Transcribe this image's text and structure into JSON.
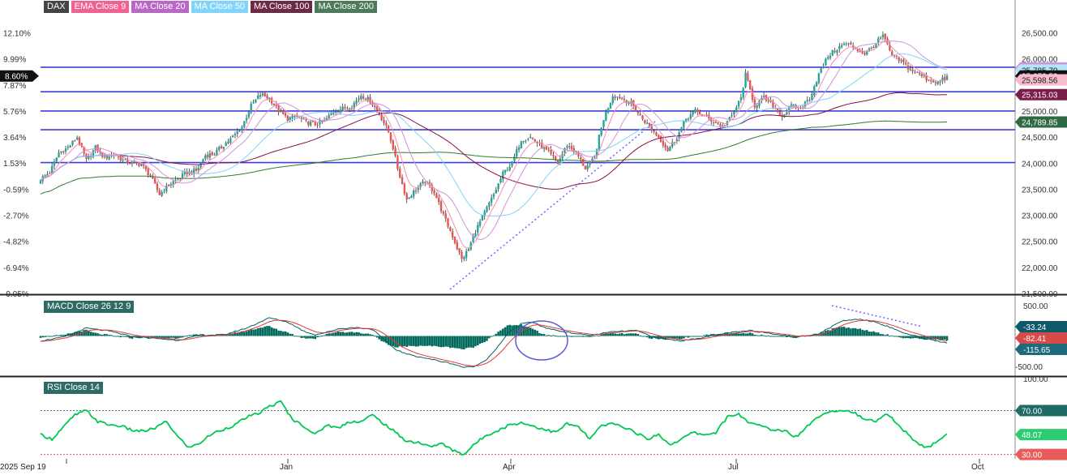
{
  "colors": {
    "up": "#26a69a",
    "down": "#ef5350",
    "ema9": "#f48fb1",
    "ma20": "#ce93d8",
    "ma50": "#81d4fa",
    "ma100": "#880e4f",
    "ma200": "#2e7d32",
    "hline": "#3f3fd8",
    "macd_line": "#006064",
    "macd_signal": "#e53935",
    "macd_hist": "#00695c",
    "rsi": "#00c853",
    "trend": "#7b5cff"
  },
  "legend": [
    {
      "label": "DAX",
      "color": "#444444"
    },
    {
      "label": "EMA Close 9",
      "color": "#f06292"
    },
    {
      "label": "MA Close 20",
      "color": "#ba68c8"
    },
    {
      "label": "MA Close 50",
      "color": "#81d4fa"
    },
    {
      "label": "MA Close 100",
      "color": "#6d2a45"
    },
    {
      "label": "MA Close 200",
      "color": "#4e7a5c"
    }
  ],
  "macd_legend": "MACD Close 26 12 9",
  "rsi_legend": "RSI Close 14",
  "chart_data": [
    {
      "type": "candlestick",
      "pane": "price",
      "x_ticks": [
        "2025 Sep 19",
        "Jan",
        "Apr",
        "Jul",
        "Oct"
      ],
      "y_ticks_right": [
        "26,500.00",
        "26,000.00",
        "25,000.00",
        "24,500.00",
        "24,000.00",
        "23,500.00",
        "23,000.00",
        "22,500.00",
        "22,000.00",
        "21,500.00"
      ],
      "y_ticks_left": [
        "12.10%",
        "9.99%",
        "7.87%",
        "5.76%",
        "3.64%",
        "1.53%",
        "-0.59%",
        "-2.70%",
        "-4.82%",
        "-6.94%",
        "-9.05%"
      ],
      "ylim": [
        21500,
        26850
      ],
      "horizontal_lines": [
        25840,
        25370,
        25000,
        24640,
        24010
      ],
      "current_percent": "8.60%",
      "price_labels": [
        {
          "text": "25,825.50",
          "value": 25825.5,
          "series": "ma20"
        },
        {
          "text": "25,785.70",
          "value": 25785.7,
          "series": "ma50"
        },
        {
          "text": "25,672.53",
          "value": 25672.53,
          "series": "price"
        },
        {
          "text": "25,598.56",
          "value": 25598.56,
          "series": "ema9"
        },
        {
          "text": "25,315.03",
          "value": 25315.03,
          "series": "ma100"
        },
        {
          "text": "24,789.85",
          "value": 24789.85,
          "series": "ma200"
        }
      ],
      "anchors": [
        [
          0,
          23700
        ],
        [
          4,
          23820
        ],
        [
          8,
          24200
        ],
        [
          12,
          24300
        ],
        [
          16,
          24500
        ],
        [
          20,
          24050
        ],
        [
          24,
          24300
        ],
        [
          28,
          24100
        ],
        [
          32,
          24180
        ],
        [
          36,
          24050
        ],
        [
          40,
          24000
        ],
        [
          44,
          23980
        ],
        [
          48,
          23750
        ],
        [
          52,
          23400
        ],
        [
          56,
          23580
        ],
        [
          60,
          23700
        ],
        [
          64,
          23820
        ],
        [
          68,
          23850
        ],
        [
          72,
          24150
        ],
        [
          76,
          24180
        ],
        [
          80,
          24350
        ],
        [
          84,
          24500
        ],
        [
          88,
          24700
        ],
        [
          92,
          25100
        ],
        [
          96,
          25320
        ],
        [
          100,
          25250
        ],
        [
          104,
          25000
        ],
        [
          108,
          24850
        ],
        [
          112,
          24900
        ],
        [
          116,
          24780
        ],
        [
          120,
          24750
        ],
        [
          124,
          24800
        ],
        [
          128,
          25000
        ],
        [
          132,
          25050
        ],
        [
          136,
          25100
        ],
        [
          140,
          25300
        ],
        [
          144,
          25200
        ],
        [
          148,
          24950
        ],
        [
          152,
          24600
        ],
        [
          154,
          24300
        ],
        [
          156,
          23900
        ],
        [
          160,
          23300
        ],
        [
          164,
          23500
        ],
        [
          168,
          23650
        ],
        [
          172,
          23450
        ],
        [
          176,
          23000
        ],
        [
          180,
          22600
        ],
        [
          184,
          22150
        ],
        [
          187,
          22350
        ],
        [
          190,
          22700
        ],
        [
          194,
          23050
        ],
        [
          198,
          23400
        ],
        [
          202,
          23800
        ],
        [
          206,
          24000
        ],
        [
          210,
          24450
        ],
        [
          214,
          24500
        ],
        [
          218,
          24350
        ],
        [
          222,
          24200
        ],
        [
          226,
          24000
        ],
        [
          230,
          24350
        ],
        [
          234,
          24200
        ],
        [
          238,
          23900
        ],
        [
          242,
          24100
        ],
        [
          244,
          24500
        ],
        [
          246,
          24850
        ],
        [
          250,
          25300
        ],
        [
          254,
          25250
        ],
        [
          258,
          25150
        ],
        [
          262,
          24900
        ],
        [
          266,
          24700
        ],
        [
          270,
          24500
        ],
        [
          274,
          24250
        ],
        [
          278,
          24500
        ],
        [
          282,
          24850
        ],
        [
          286,
          25000
        ],
        [
          290,
          24900
        ],
        [
          294,
          24800
        ],
        [
          298,
          24700
        ],
        [
          302,
          24900
        ],
        [
          306,
          25250
        ],
        [
          308,
          25700
        ],
        [
          312,
          25100
        ],
        [
          316,
          25250
        ],
        [
          320,
          25100
        ],
        [
          324,
          24900
        ],
        [
          328,
          25100
        ],
        [
          332,
          25050
        ],
        [
          336,
          25250
        ],
        [
          340,
          25700
        ],
        [
          344,
          26050
        ],
        [
          348,
          26200
        ],
        [
          352,
          26300
        ],
        [
          356,
          26200
        ],
        [
          360,
          26100
        ],
        [
          364,
          26250
        ],
        [
          368,
          26450
        ],
        [
          372,
          26050
        ],
        [
          376,
          25950
        ],
        [
          380,
          25800
        ],
        [
          384,
          25700
        ],
        [
          388,
          25600
        ],
        [
          392,
          25550
        ],
        [
          396,
          25650
        ]
      ]
    },
    {
      "type": "macd",
      "pane": "macd",
      "y_ticks_right": [
        "500.00",
        "-500.00"
      ],
      "ylim": [
        -650,
        650
      ],
      "value_labels": [
        {
          "text": "-33.24",
          "value": -33.24,
          "series": "hist"
        },
        {
          "text": "-82.41",
          "value": -82.41,
          "series": "signal"
        },
        {
          "text": "-115.65",
          "value": -115.65,
          "series": "macd"
        }
      ],
      "anchors": [
        [
          0,
          -80
        ],
        [
          10,
          -20
        ],
        [
          20,
          130
        ],
        [
          30,
          80
        ],
        [
          40,
          -10
        ],
        [
          50,
          -40
        ],
        [
          60,
          -70
        ],
        [
          70,
          10
        ],
        [
          80,
          20
        ],
        [
          90,
          130
        ],
        [
          100,
          300
        ],
        [
          108,
          230
        ],
        [
          115,
          80
        ],
        [
          120,
          20
        ],
        [
          125,
          60
        ],
        [
          130,
          120
        ],
        [
          138,
          140
        ],
        [
          145,
          110
        ],
        [
          150,
          -60
        ],
        [
          155,
          -220
        ],
        [
          160,
          -300
        ],
        [
          170,
          -380
        ],
        [
          180,
          -460
        ],
        [
          185,
          -520
        ],
        [
          190,
          -500
        ],
        [
          195,
          -380
        ],
        [
          200,
          -170
        ],
        [
          205,
          80
        ],
        [
          210,
          200
        ],
        [
          215,
          230
        ],
        [
          220,
          140
        ],
        [
          230,
          60
        ],
        [
          240,
          10
        ],
        [
          250,
          70
        ],
        [
          260,
          90
        ],
        [
          270,
          -40
        ],
        [
          280,
          -80
        ],
        [
          290,
          -20
        ],
        [
          300,
          50
        ],
        [
          310,
          90
        ],
        [
          320,
          40
        ],
        [
          330,
          -20
        ],
        [
          340,
          40
        ],
        [
          345,
          140
        ],
        [
          350,
          250
        ],
        [
          358,
          280
        ],
        [
          365,
          230
        ],
        [
          372,
          130
        ],
        [
          378,
          40
        ],
        [
          385,
          -30
        ],
        [
          396,
          -115.65
        ]
      ]
    },
    {
      "type": "line",
      "pane": "rsi",
      "y_ticks_right": [
        "100.00",
        "70.00",
        "30.00"
      ],
      "ylim": [
        26,
        100
      ],
      "value_labels": [
        {
          "text": "48.07",
          "value": 48.07,
          "series": "rsi"
        }
      ],
      "anchors": [
        [
          0,
          48
        ],
        [
          5,
          44
        ],
        [
          10,
          55
        ],
        [
          15,
          66
        ],
        [
          20,
          70
        ],
        [
          25,
          60
        ],
        [
          30,
          57
        ],
        [
          35,
          56
        ],
        [
          40,
          52
        ],
        [
          45,
          51
        ],
        [
          50,
          54
        ],
        [
          55,
          60
        ],
        [
          60,
          46
        ],
        [
          65,
          36
        ],
        [
          70,
          41
        ],
        [
          75,
          49
        ],
        [
          80,
          53
        ],
        [
          85,
          57
        ],
        [
          90,
          64
        ],
        [
          95,
          67
        ],
        [
          100,
          74
        ],
        [
          105,
          78
        ],
        [
          110,
          62
        ],
        [
          115,
          56
        ],
        [
          120,
          48
        ],
        [
          125,
          57
        ],
        [
          130,
          54
        ],
        [
          135,
          60
        ],
        [
          140,
          60
        ],
        [
          145,
          66
        ],
        [
          150,
          58
        ],
        [
          155,
          50
        ],
        [
          160,
          42
        ],
        [
          165,
          41
        ],
        [
          170,
          37
        ],
        [
          175,
          40
        ],
        [
          180,
          34
        ],
        [
          185,
          30
        ],
        [
          190,
          40
        ],
        [
          195,
          48
        ],
        [
          200,
          52
        ],
        [
          205,
          57
        ],
        [
          210,
          59
        ],
        [
          215,
          56
        ],
        [
          220,
          53
        ],
        [
          225,
          50
        ],
        [
          230,
          58
        ],
        [
          235,
          55
        ],
        [
          240,
          44
        ],
        [
          245,
          56
        ],
        [
          250,
          58
        ],
        [
          255,
          55
        ],
        [
          260,
          50
        ],
        [
          265,
          44
        ],
        [
          270,
          48
        ],
        [
          275,
          39
        ],
        [
          280,
          44
        ],
        [
          285,
          50
        ],
        [
          290,
          48
        ],
        [
          295,
          50
        ],
        [
          300,
          64
        ],
        [
          305,
          67
        ],
        [
          310,
          58
        ],
        [
          315,
          56
        ],
        [
          320,
          52
        ],
        [
          325,
          52
        ],
        [
          330,
          46
        ],
        [
          335,
          56
        ],
        [
          340,
          65
        ],
        [
          345,
          70
        ],
        [
          350,
          70
        ],
        [
          355,
          69
        ],
        [
          360,
          61
        ],
        [
          365,
          61
        ],
        [
          370,
          67
        ],
        [
          375,
          56
        ],
        [
          380,
          46
        ],
        [
          385,
          38
        ],
        [
          388,
          36
        ],
        [
          392,
          43
        ],
        [
          396,
          48.07
        ]
      ]
    }
  ]
}
